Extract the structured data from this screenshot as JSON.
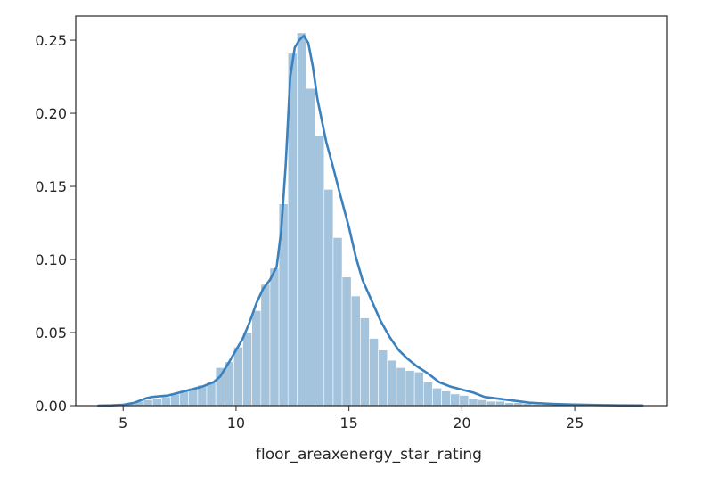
{
  "chart_data": {
    "type": "histogram",
    "xlabel": "floor_areaxenergy_star_rating",
    "ylabel": "",
    "xlim": [
      2.9,
      29.1
    ],
    "ylim": [
      0,
      0.2665
    ],
    "xticks": [
      5,
      10,
      15,
      20,
      25
    ],
    "xtick_labels": [
      "5",
      "10",
      "15",
      "20",
      "25"
    ],
    "yticks": [
      0.0,
      0.05,
      0.1,
      0.15,
      0.2,
      0.25
    ],
    "ytick_labels": [
      "0.00",
      "0.05",
      "0.10",
      "0.15",
      "0.20",
      "0.25"
    ],
    "grid": false,
    "legend": false,
    "colors": {
      "bar_fill": "#a4c3dc",
      "kde_line": "#3b81bd",
      "axes": "#262626"
    },
    "histogram": {
      "bin_edges": [
        3.9,
        4.3,
        4.7,
        5.1,
        5.5,
        5.9,
        6.3,
        6.7,
        7.1,
        7.5,
        7.9,
        8.3,
        8.7,
        9.1,
        9.5,
        9.9,
        10.3,
        10.7,
        11.1,
        11.5,
        11.9,
        12.3,
        12.7,
        13.1,
        13.5,
        13.9,
        14.3,
        14.7,
        15.1,
        15.5,
        15.9,
        16.3,
        16.7,
        17.1,
        17.5,
        17.9,
        18.3,
        18.7,
        19.1,
        19.5,
        19.9,
        20.3,
        20.7,
        21.1,
        21.5,
        21.9,
        22.3,
        22.7,
        23.1,
        23.5,
        23.9,
        24.3,
        24.7,
        25.1,
        25.5,
        25.9,
        26.3,
        26.7,
        27.1,
        27.5,
        27.9
      ],
      "densities": [
        0.001,
        0.001,
        0.001,
        0.002,
        0.003,
        0.004,
        0.005,
        0.006,
        0.008,
        0.01,
        0.012,
        0.014,
        0.016,
        0.026,
        0.03,
        0.04,
        0.05,
        0.065,
        0.083,
        0.094,
        0.138,
        0.241,
        0.255,
        0.217,
        0.185,
        0.148,
        0.115,
        0.088,
        0.075,
        0.06,
        0.046,
        0.038,
        0.031,
        0.026,
        0.024,
        0.023,
        0.016,
        0.012,
        0.01,
        0.008,
        0.007,
        0.005,
        0.004,
        0.003,
        0.003,
        0.002,
        0.002,
        0.0015,
        0.001,
        0.001,
        0.001,
        0.0008,
        0.0007,
        0.0006,
        0.0005,
        0.0004,
        0.0003,
        0.0003,
        0.0002,
        0.0002
      ]
    },
    "kde": {
      "x": [
        3.9,
        4.5,
        5.0,
        5.5,
        6.0,
        6.3,
        7.0,
        7.5,
        8.0,
        8.5,
        9.0,
        9.3,
        9.7,
        10.0,
        10.3,
        10.6,
        10.9,
        11.2,
        11.5,
        11.8,
        12.0,
        12.2,
        12.4,
        12.6,
        12.8,
        13.0,
        13.2,
        13.4,
        13.6,
        13.8,
        14.0,
        14.3,
        14.6,
        15.0,
        15.3,
        15.6,
        16.0,
        16.4,
        16.8,
        17.2,
        17.6,
        18.0,
        18.5,
        19.0,
        19.5,
        20.0,
        20.5,
        21.0,
        21.5,
        22.0,
        22.5,
        23.0,
        23.5,
        24.0,
        25.0,
        26.0,
        27.0,
        28.0
      ],
      "y": [
        0.0,
        0.0002,
        0.0006,
        0.002,
        0.005,
        0.006,
        0.007,
        0.009,
        0.011,
        0.013,
        0.016,
        0.02,
        0.03,
        0.038,
        0.046,
        0.057,
        0.07,
        0.08,
        0.086,
        0.095,
        0.12,
        0.165,
        0.225,
        0.245,
        0.25,
        0.253,
        0.248,
        0.232,
        0.21,
        0.195,
        0.18,
        0.163,
        0.145,
        0.122,
        0.102,
        0.086,
        0.072,
        0.058,
        0.047,
        0.038,
        0.032,
        0.027,
        0.022,
        0.016,
        0.013,
        0.011,
        0.009,
        0.006,
        0.005,
        0.004,
        0.003,
        0.002,
        0.0016,
        0.0012,
        0.0007,
        0.0004,
        0.0002,
        0.0001
      ]
    }
  }
}
